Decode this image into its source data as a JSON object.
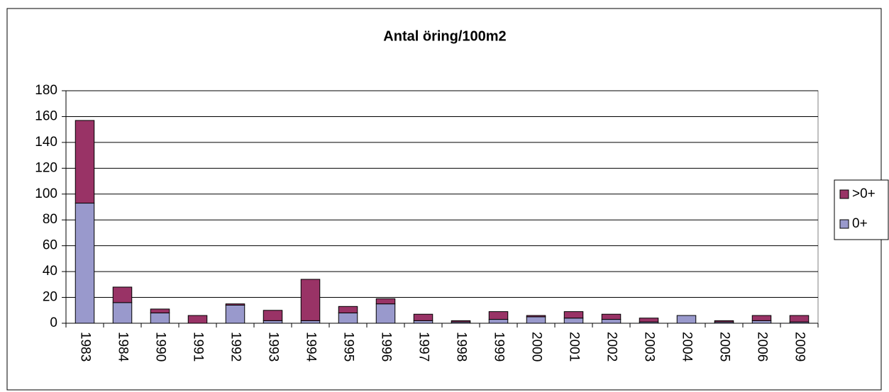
{
  "chart_data": {
    "type": "bar",
    "stacked": true,
    "title": "Antal öring/100m2",
    "categories": [
      "1983",
      "1984",
      "1990",
      "1991",
      "1992",
      "1993",
      "1994",
      "1995",
      "1996",
      "1997",
      "1998",
      "1999",
      "2000",
      "2001",
      "2002",
      "2003",
      "2004",
      "2005",
      "2006",
      "2009"
    ],
    "series": [
      {
        "name": "0+",
        "color": "#9999cc",
        "values": [
          93,
          16,
          8,
          0,
          14,
          2,
          2,
          8,
          15,
          2,
          1,
          3,
          5,
          4,
          3,
          1,
          6,
          1,
          2,
          1
        ]
      },
      {
        "name": ">0+",
        "color": "#993366",
        "values": [
          64,
          12,
          3,
          6,
          1,
          8,
          32,
          5,
          4,
          5,
          1,
          6,
          1,
          5,
          4,
          3,
          0,
          1,
          4,
          5
        ]
      }
    ],
    "ylim": [
      0,
      180
    ],
    "yticks": [
      0,
      20,
      40,
      60,
      80,
      100,
      120,
      140,
      160,
      180
    ],
    "grid": true,
    "legend": "right"
  }
}
